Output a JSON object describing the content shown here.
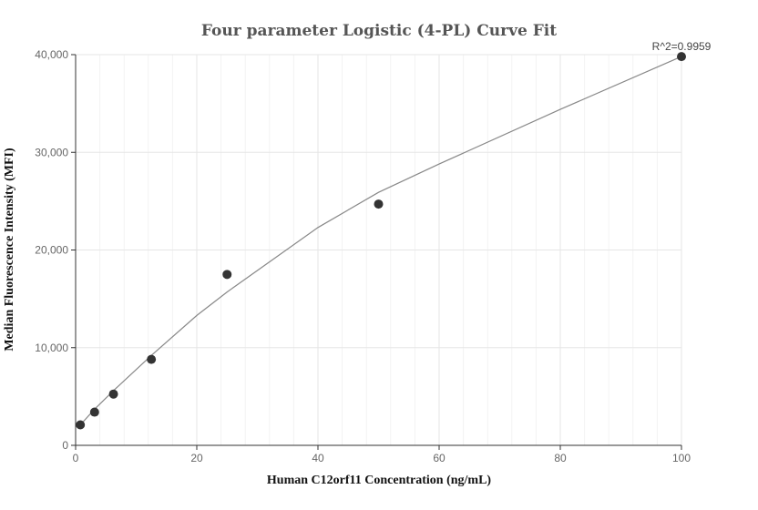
{
  "chart_data": {
    "type": "scatter",
    "title": "Four parameter Logistic (4-PL) Curve Fit",
    "xlabel": "Human C12orf11 Concentration (ng/mL)",
    "ylabel": "Median Fluorescence Intensity (MFI)",
    "xlim": [
      0,
      100
    ],
    "ylim": [
      0,
      40000
    ],
    "x_ticks": [
      0,
      20,
      40,
      60,
      80,
      100
    ],
    "y_ticks": [
      0,
      10000,
      20000,
      30000,
      40000
    ],
    "x_tick_labels": [
      "0",
      "20",
      "40",
      "60",
      "80",
      "100"
    ],
    "y_tick_labels": [
      "0",
      "10,000",
      "20,000",
      "30,000",
      "40,000"
    ],
    "annotation": "R^2=0.9959",
    "grid": true,
    "points": {
      "x": [
        0.78,
        3.13,
        6.25,
        12.5,
        25,
        50,
        100
      ],
      "y": [
        2100,
        3400,
        5250,
        8800,
        17500,
        24700,
        39800
      ]
    },
    "fit_curve": {
      "x": [
        0.78,
        3.13,
        6.25,
        12.5,
        20,
        25,
        40,
        50,
        60,
        80,
        100
      ],
      "y": [
        2100,
        3700,
        5600,
        9200,
        13300,
        15700,
        22300,
        25900,
        28800,
        34400,
        39800
      ]
    },
    "colors": {
      "points": "#333333",
      "curve": "#888888",
      "grid": "#e6e6e6",
      "minor_grid": "#f3f3f3"
    }
  }
}
